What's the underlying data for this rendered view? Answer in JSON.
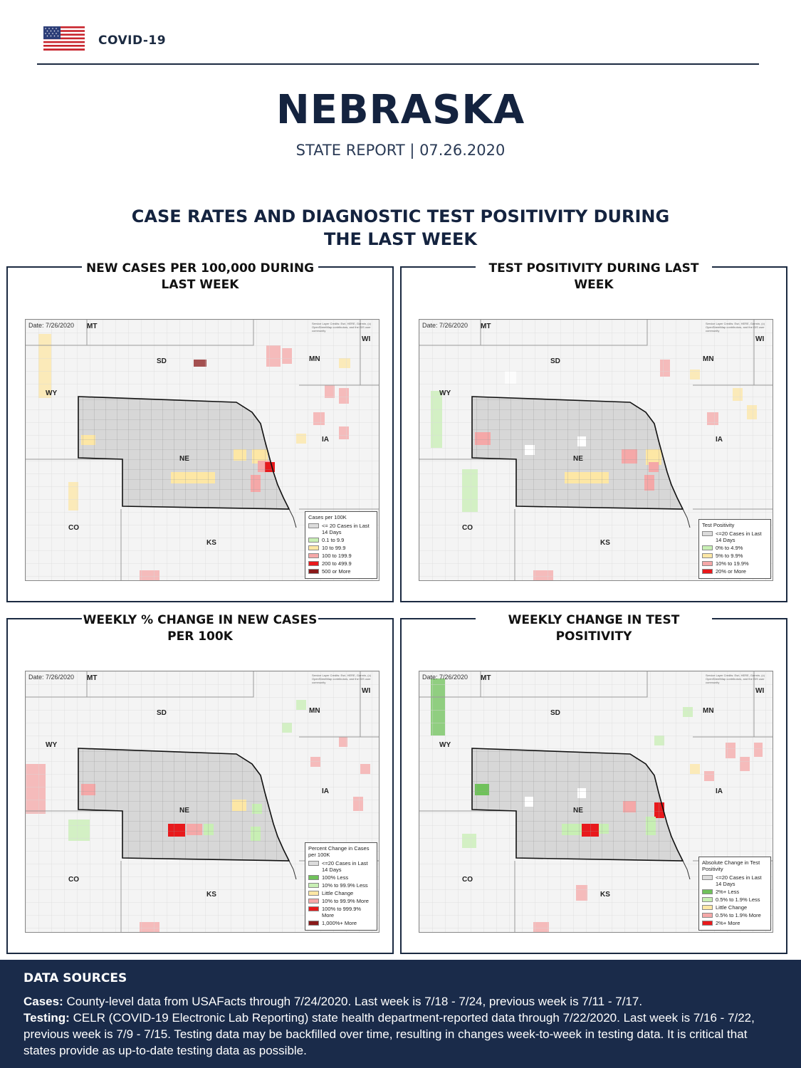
{
  "header": {
    "brand": "COVID-19",
    "title": "NEBRASKA",
    "subtitle": "STATE REPORT | 07.26.2020"
  },
  "section": {
    "title": "CASE RATES AND DIAGNOSTIC TEST POSITIVITY DURING THE LAST WEEK"
  },
  "colors": {
    "navy": "#1a2b4a",
    "gray": "#dcdcdc",
    "light_green": "#c8efb4",
    "green": "#6fc25a",
    "yellow": "#fde7a5",
    "pink": "#f5a8a8",
    "red": "#e8191c",
    "dark_red": "#8a1a1a"
  },
  "map_labels": {
    "date": "Date: 7/26/2020",
    "attribution": "Service Layer Credits: Esri, HERE, Garmin, (c) OpenStreetMap contributors, and the GIS user community",
    "states": [
      "MT",
      "SD",
      "WY",
      "NE",
      "CO",
      "KS",
      "MN",
      "WI",
      "IA"
    ]
  },
  "panels": [
    {
      "title": "NEW CASES PER 100,000 DURING LAST WEEK",
      "legend_title": "Cases per 100K",
      "legend": [
        {
          "label": "<= 20 Cases in Last 14 Days",
          "color": "#dcdcdc"
        },
        {
          "label": "0.1 to 9.9",
          "color": "#c8efb4"
        },
        {
          "label": "10 to 99.9",
          "color": "#fde7a5"
        },
        {
          "label": "100 to 199.9",
          "color": "#f5a8a8"
        },
        {
          "label": "200 to 499.9",
          "color": "#e8191c"
        },
        {
          "label": "500 or More",
          "color": "#8a1a1a"
        }
      ]
    },
    {
      "title": "TEST POSITIVITY DURING LAST WEEK",
      "legend_title": "Test Positivity",
      "legend": [
        {
          "label": "<=20 Cases in Last 14 Days",
          "color": "#dcdcdc"
        },
        {
          "label": "0% to 4.9%",
          "color": "#c8efb4"
        },
        {
          "label": "5% to 9.9%",
          "color": "#fde7a5"
        },
        {
          "label": "10% to 19.9%",
          "color": "#f5a8a8"
        },
        {
          "label": "20% or More",
          "color": "#e8191c"
        }
      ]
    },
    {
      "title": "WEEKLY % CHANGE IN NEW CASES PER 100K",
      "legend_title": "Percent Change in Cases per 100K",
      "legend": [
        {
          "label": "<=20 Cases in Last 14 Days",
          "color": "#dcdcdc"
        },
        {
          "label": "100% Less",
          "color": "#6fc25a"
        },
        {
          "label": "10% to 99.9% Less",
          "color": "#c8efb4"
        },
        {
          "label": "Little Change",
          "color": "#fde7a5"
        },
        {
          "label": "10% to 99.9% More",
          "color": "#f5a8a8"
        },
        {
          "label": "100% to 999.9% More",
          "color": "#e8191c"
        },
        {
          "label": "1,000%+ More",
          "color": "#8a1a1a"
        }
      ]
    },
    {
      "title": "WEEKLY CHANGE IN TEST POSITIVITY",
      "legend_title": "Absolute Change in Test Positivity",
      "legend": [
        {
          "label": "<=20 Cases in Last 14 Days",
          "color": "#dcdcdc"
        },
        {
          "label": "2%+ Less",
          "color": "#6fc25a"
        },
        {
          "label": "0.5% to 1.9% Less",
          "color": "#c8efb4"
        },
        {
          "label": "Little Change",
          "color": "#fde7a5"
        },
        {
          "label": "0.5% to 1.9% More",
          "color": "#f5a8a8"
        },
        {
          "label": "2%+ More",
          "color": "#e8191c"
        }
      ]
    }
  ],
  "footer": {
    "heading": "DATA SOURCES",
    "cases_label": "Cases:",
    "cases_text": " County-level data from USAFacts through 7/24/2020. Last week is 7/18 - 7/24, previous week is 7/11 - 7/17.",
    "testing_label": "Testing:",
    "testing_text": " CELR (COVID-19 Electronic Lab Reporting) state health department-reported data through 7/22/2020. Last week is 7/16 - 7/22, previous week is 7/9 - 7/15. Testing data may be backfilled over time, resulting in changes week-to-week in testing data. It is critical that states provide as up-to-date testing data as possible."
  }
}
